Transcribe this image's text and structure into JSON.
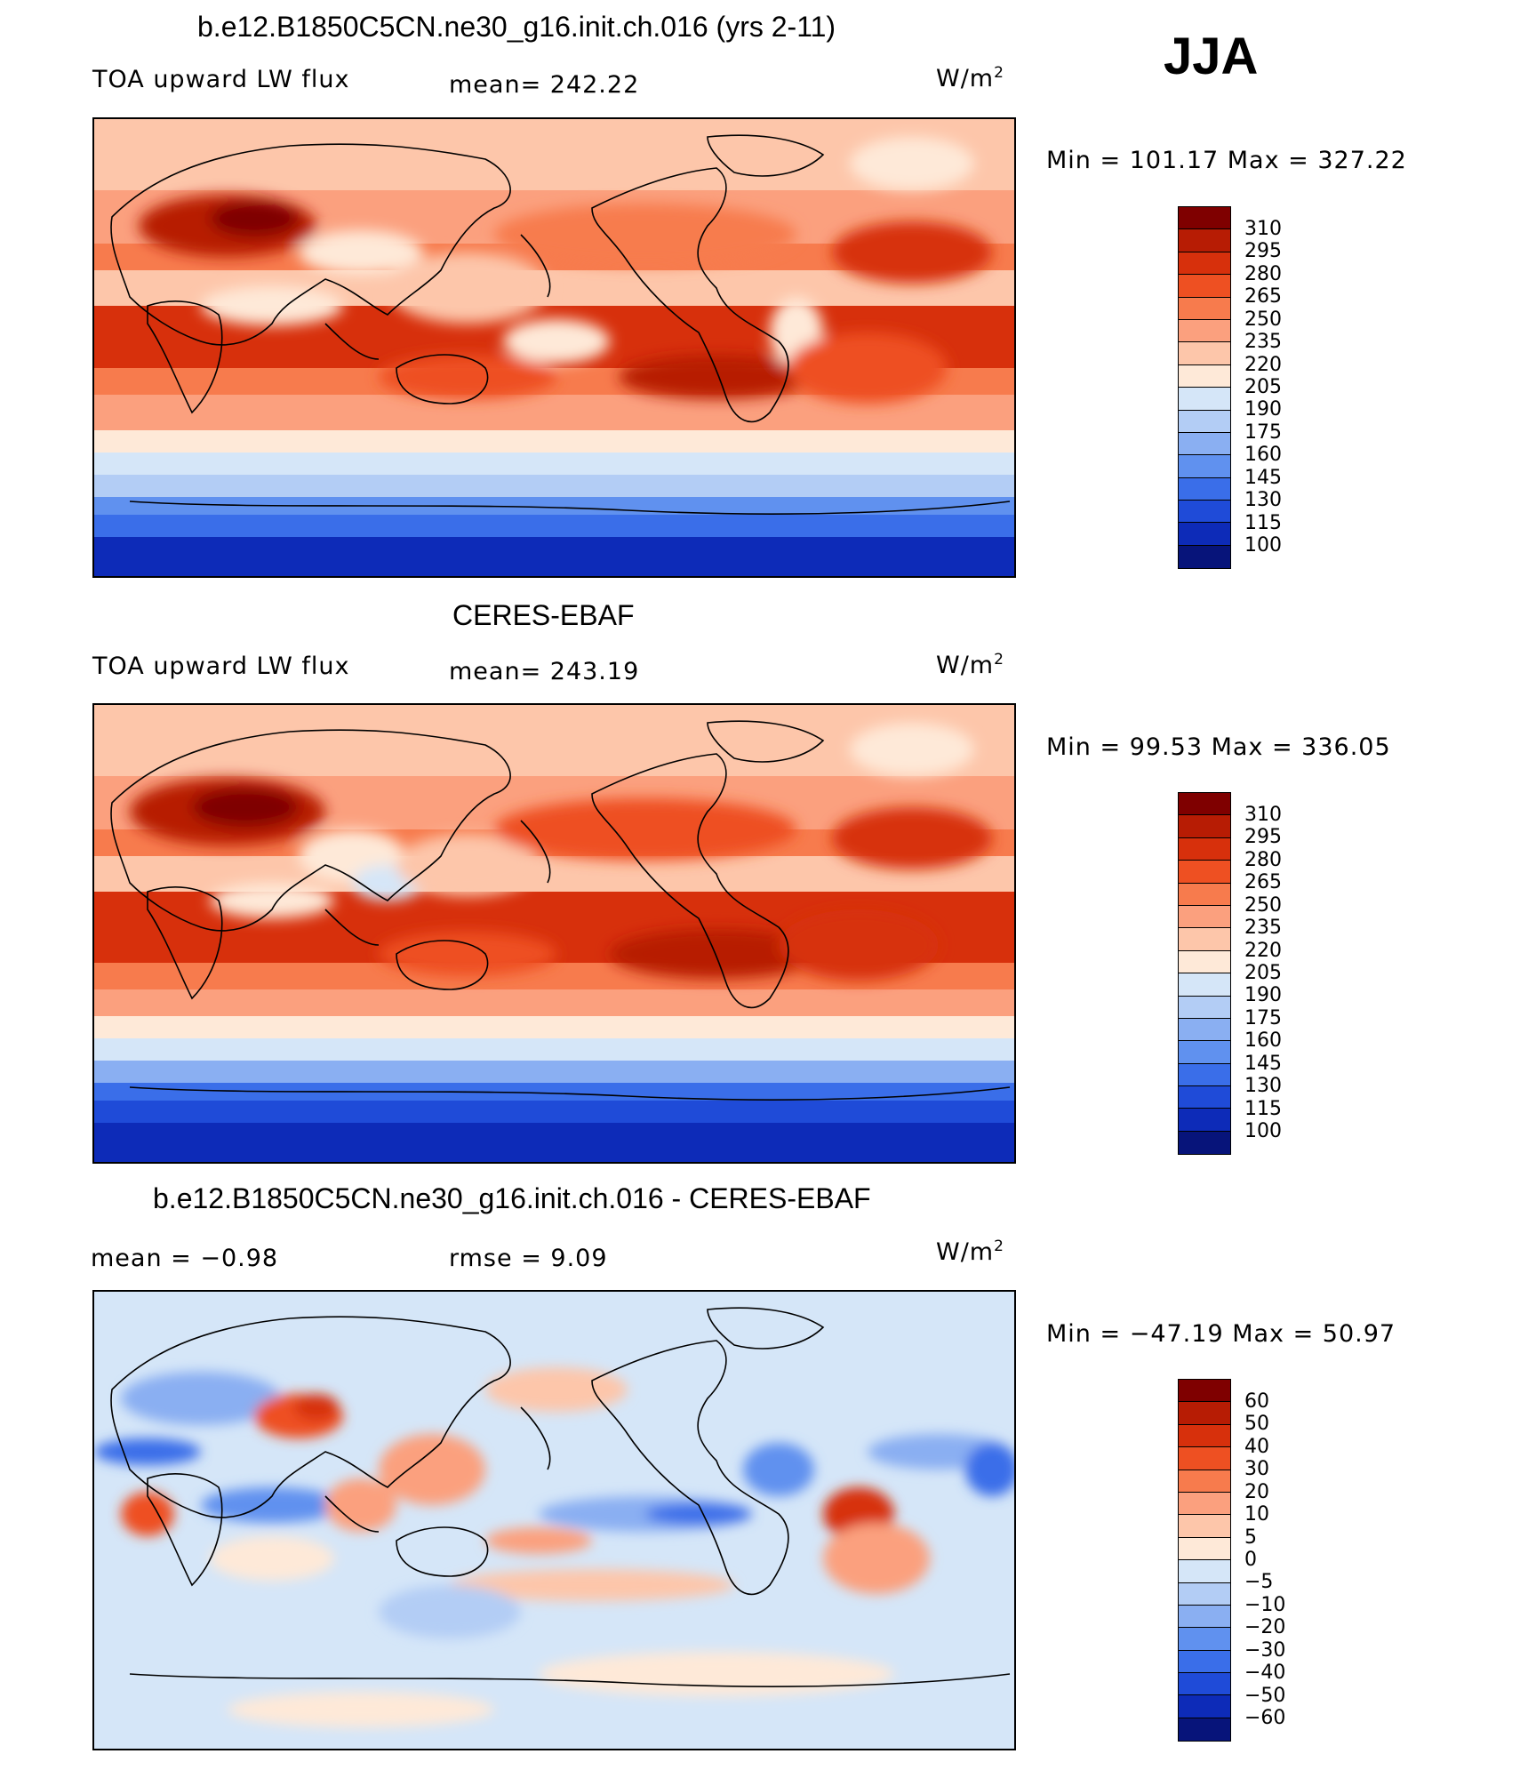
{
  "season": "JJA",
  "panels": [
    {
      "id": "model",
      "title": "b.e12.B1850C5CN.ne30_g16.init.ch.016 (yrs 2-11)",
      "left_label": "TOA upward LW flux",
      "center_label": "mean= 242.22",
      "units_base": "W/m",
      "units_exp": "2",
      "minmax": "Min  =  101.17  Max  =  327.22",
      "levels": [
        "310",
        "295",
        "280",
        "265",
        "250",
        "235",
        "220",
        "205",
        "190",
        "175",
        "160",
        "145",
        "130",
        "115",
        "100"
      ]
    },
    {
      "id": "obs",
      "title": "CERES-EBAF",
      "left_label": "TOA upward LW flux",
      "center_label": "mean= 243.19",
      "units_base": "W/m",
      "units_exp": "2",
      "minmax": "Min  =    99.53  Max  =  336.05",
      "levels": [
        "310",
        "295",
        "280",
        "265",
        "250",
        "235",
        "220",
        "205",
        "190",
        "175",
        "160",
        "145",
        "130",
        "115",
        "100"
      ]
    },
    {
      "id": "diff",
      "title": "b.e12.B1850C5CN.ne30_g16.init.ch.016 - CERES-EBAF",
      "left_label": "mean  =    −0.98",
      "center_label": "rmse  =     9.09",
      "units_base": "W/m",
      "units_exp": "2",
      "minmax": "Min  =  −47.19  Max  =    50.97",
      "levels": [
        "60",
        "50",
        "40",
        "30",
        "20",
        "10",
        "5",
        "0",
        "−5",
        "−10",
        "−20",
        "−30",
        "−40",
        "−50",
        "−60"
      ]
    }
  ],
  "palette": {
    "flux": [
      "#7f0000",
      "#b71c04",
      "#d7300c",
      "#ee5022",
      "#f77b4d",
      "#fba07e",
      "#fdc6aa",
      "#fee9d8",
      "#d5e6f8",
      "#b3cdf5",
      "#8aaff2",
      "#6091ef",
      "#3a6ee9",
      "#1f4bd8",
      "#0d2bb8",
      "#07147a"
    ],
    "diff": [
      "#7f0000",
      "#b71c04",
      "#d7300c",
      "#ee5022",
      "#f77b4d",
      "#fba07e",
      "#fdc6aa",
      "#fee9d8",
      "#d5e6f8",
      "#b3cdf5",
      "#8aaff2",
      "#6091ef",
      "#3a6ee9",
      "#1f4bd8",
      "#0d2bb8",
      "#07147a"
    ]
  }
}
